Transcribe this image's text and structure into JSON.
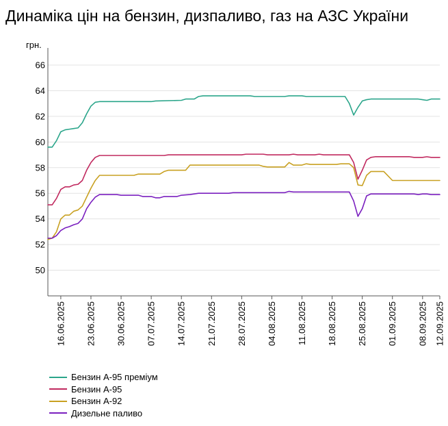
{
  "chart_data": {
    "type": "line",
    "title": "Динаміка цін на бензин, дизпаливо, газ на АЗС України",
    "ylabel": "грн.",
    "xlabel": "",
    "ylim": [
      48,
      66
    ],
    "yticks": [
      50,
      52,
      54,
      56,
      58,
      60,
      62,
      64,
      66
    ],
    "x_tick_labels": [
      "16.06.2025",
      "23.06.2025",
      "30.06.2025",
      "07.07.2025",
      "14.07.2025",
      "21.07.2025",
      "28.07.2025",
      "04.08.2025",
      "11.08.2025",
      "18.08.2025",
      "25.08.2025",
      "01.09.2025",
      "08.09.2025",
      "12.09.2025"
    ],
    "x_range": [
      "2025-06-13",
      "2025-09-12"
    ],
    "grid": "horizontal",
    "legend_position": "bottom-left",
    "series": [
      {
        "name": "Бензин А-95 преміум",
        "color": "#2aa58a",
        "points": [
          [
            "2025-06-13",
            59.6
          ],
          [
            "2025-06-14",
            59.6
          ],
          [
            "2025-06-15",
            60.1
          ],
          [
            "2025-06-16",
            60.8
          ],
          [
            "2025-06-17",
            60.95
          ],
          [
            "2025-06-18",
            61.0
          ],
          [
            "2025-06-19",
            61.05
          ],
          [
            "2025-06-20",
            61.1
          ],
          [
            "2025-06-21",
            61.5
          ],
          [
            "2025-06-22",
            62.2
          ],
          [
            "2025-06-23",
            62.8
          ],
          [
            "2025-06-24",
            63.1
          ],
          [
            "2025-06-25",
            63.15
          ],
          [
            "2025-06-30",
            63.15
          ],
          [
            "2025-07-07",
            63.15
          ],
          [
            "2025-07-08",
            63.2
          ],
          [
            "2025-07-14",
            63.25
          ],
          [
            "2025-07-15",
            63.35
          ],
          [
            "2025-07-17",
            63.35
          ],
          [
            "2025-07-18",
            63.55
          ],
          [
            "2025-07-19",
            63.6
          ],
          [
            "2025-07-30",
            63.6
          ],
          [
            "2025-07-31",
            63.55
          ],
          [
            "2025-08-07",
            63.55
          ],
          [
            "2025-08-08",
            63.6
          ],
          [
            "2025-08-11",
            63.6
          ],
          [
            "2025-08-12",
            63.55
          ],
          [
            "2025-08-21",
            63.55
          ],
          [
            "2025-08-22",
            63.0
          ],
          [
            "2025-08-23",
            62.1
          ],
          [
            "2025-08-24",
            62.7
          ],
          [
            "2025-08-25",
            63.2
          ],
          [
            "2025-08-26",
            63.3
          ],
          [
            "2025-08-27",
            63.35
          ],
          [
            "2025-09-07",
            63.35
          ],
          [
            "2025-09-08",
            63.3
          ],
          [
            "2025-09-09",
            63.25
          ],
          [
            "2025-09-10",
            63.35
          ],
          [
            "2025-09-12",
            63.35
          ]
        ]
      },
      {
        "name": "Бензин А-95",
        "color": "#c0285e",
        "points": [
          [
            "2025-06-13",
            55.1
          ],
          [
            "2025-06-14",
            55.1
          ],
          [
            "2025-06-15",
            55.6
          ],
          [
            "2025-06-16",
            56.3
          ],
          [
            "2025-06-17",
            56.5
          ],
          [
            "2025-06-18",
            56.5
          ],
          [
            "2025-06-19",
            56.65
          ],
          [
            "2025-06-20",
            56.7
          ],
          [
            "2025-06-21",
            57.0
          ],
          [
            "2025-06-22",
            57.8
          ],
          [
            "2025-06-23",
            58.4
          ],
          [
            "2025-06-24",
            58.8
          ],
          [
            "2025-06-25",
            58.95
          ],
          [
            "2025-07-10",
            58.95
          ],
          [
            "2025-07-11",
            59.0
          ],
          [
            "2025-07-28",
            59.0
          ],
          [
            "2025-07-29",
            59.05
          ],
          [
            "2025-08-02",
            59.05
          ],
          [
            "2025-08-03",
            59.0
          ],
          [
            "2025-08-08",
            59.0
          ],
          [
            "2025-08-09",
            59.05
          ],
          [
            "2025-08-10",
            59.0
          ],
          [
            "2025-08-14",
            59.0
          ],
          [
            "2025-08-15",
            59.05
          ],
          [
            "2025-08-16",
            59.0
          ],
          [
            "2025-08-22",
            59.0
          ],
          [
            "2025-08-23",
            58.4
          ],
          [
            "2025-08-24",
            57.1
          ],
          [
            "2025-08-25",
            57.8
          ],
          [
            "2025-08-26",
            58.6
          ],
          [
            "2025-08-27",
            58.8
          ],
          [
            "2025-08-28",
            58.85
          ],
          [
            "2025-09-05",
            58.85
          ],
          [
            "2025-09-06",
            58.8
          ],
          [
            "2025-09-08",
            58.8
          ],
          [
            "2025-09-09",
            58.85
          ],
          [
            "2025-09-10",
            58.8
          ],
          [
            "2025-09-12",
            58.8
          ]
        ]
      },
      {
        "name": "Бензин А-92",
        "color": "#c8a020",
        "points": [
          [
            "2025-06-13",
            52.4
          ],
          [
            "2025-06-14",
            52.5
          ],
          [
            "2025-06-15",
            53.0
          ],
          [
            "2025-06-16",
            54.0
          ],
          [
            "2025-06-17",
            54.3
          ],
          [
            "2025-06-18",
            54.3
          ],
          [
            "2025-06-19",
            54.6
          ],
          [
            "2025-06-20",
            54.7
          ],
          [
            "2025-06-21",
            55.0
          ],
          [
            "2025-06-22",
            55.7
          ],
          [
            "2025-06-23",
            56.4
          ],
          [
            "2025-06-24",
            57.0
          ],
          [
            "2025-06-25",
            57.4
          ],
          [
            "2025-07-03",
            57.4
          ],
          [
            "2025-07-04",
            57.5
          ],
          [
            "2025-07-09",
            57.5
          ],
          [
            "2025-07-10",
            57.7
          ],
          [
            "2025-07-11",
            57.8
          ],
          [
            "2025-07-15",
            57.8
          ],
          [
            "2025-07-16",
            58.2
          ],
          [
            "2025-08-01",
            58.2
          ],
          [
            "2025-08-02",
            58.1
          ],
          [
            "2025-08-03",
            58.05
          ],
          [
            "2025-08-07",
            58.05
          ],
          [
            "2025-08-08",
            58.4
          ],
          [
            "2025-08-09",
            58.2
          ],
          [
            "2025-08-11",
            58.2
          ],
          [
            "2025-08-12",
            58.3
          ],
          [
            "2025-08-13",
            58.25
          ],
          [
            "2025-08-19",
            58.25
          ],
          [
            "2025-08-20",
            58.3
          ],
          [
            "2025-08-22",
            58.3
          ],
          [
            "2025-08-23",
            58.0
          ],
          [
            "2025-08-24",
            56.65
          ],
          [
            "2025-08-25",
            56.6
          ],
          [
            "2025-08-26",
            57.4
          ],
          [
            "2025-08-27",
            57.7
          ],
          [
            "2025-08-30",
            57.7
          ],
          [
            "2025-09-01",
            57.0
          ],
          [
            "2025-09-12",
            57.0
          ]
        ]
      },
      {
        "name": "Дизельне паливо",
        "color": "#7a1fbf",
        "points": [
          [
            "2025-06-13",
            52.5
          ],
          [
            "2025-06-14",
            52.5
          ],
          [
            "2025-06-15",
            52.7
          ],
          [
            "2025-06-16",
            53.1
          ],
          [
            "2025-06-17",
            53.3
          ],
          [
            "2025-06-18",
            53.4
          ],
          [
            "2025-06-19",
            53.55
          ],
          [
            "2025-06-20",
            53.65
          ],
          [
            "2025-06-21",
            54.0
          ],
          [
            "2025-06-22",
            54.8
          ],
          [
            "2025-06-23",
            55.3
          ],
          [
            "2025-06-24",
            55.7
          ],
          [
            "2025-06-25",
            55.9
          ],
          [
            "2025-06-29",
            55.9
          ],
          [
            "2025-06-30",
            55.85
          ],
          [
            "2025-07-04",
            55.85
          ],
          [
            "2025-07-05",
            55.75
          ],
          [
            "2025-07-07",
            55.75
          ],
          [
            "2025-07-08",
            55.65
          ],
          [
            "2025-07-09",
            55.65
          ],
          [
            "2025-07-10",
            55.75
          ],
          [
            "2025-07-13",
            55.75
          ],
          [
            "2025-07-14",
            55.85
          ],
          [
            "2025-07-16",
            55.9
          ],
          [
            "2025-07-18",
            56.0
          ],
          [
            "2025-07-25",
            56.0
          ],
          [
            "2025-07-26",
            56.05
          ],
          [
            "2025-08-07",
            56.05
          ],
          [
            "2025-08-08",
            56.15
          ],
          [
            "2025-08-09",
            56.1
          ],
          [
            "2025-08-22",
            56.1
          ],
          [
            "2025-08-23",
            55.4
          ],
          [
            "2025-08-24",
            54.2
          ],
          [
            "2025-08-25",
            54.8
          ],
          [
            "2025-08-26",
            55.8
          ],
          [
            "2025-08-27",
            55.95
          ],
          [
            "2025-09-06",
            55.95
          ],
          [
            "2025-09-07",
            55.9
          ],
          [
            "2025-09-08",
            55.95
          ],
          [
            "2025-09-09",
            55.95
          ],
          [
            "2025-09-10",
            55.9
          ],
          [
            "2025-09-12",
            55.9
          ]
        ]
      }
    ]
  }
}
